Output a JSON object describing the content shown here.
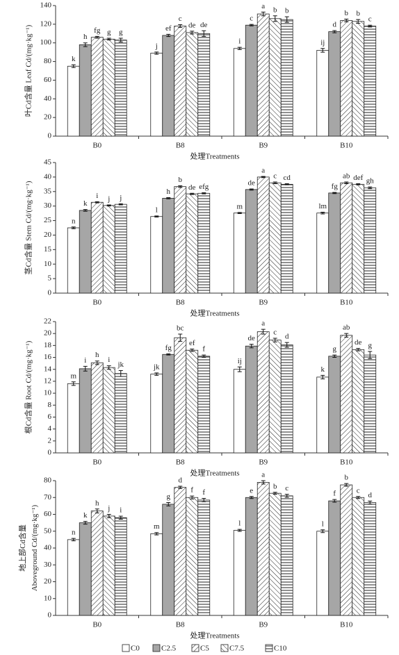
{
  "chart_data": [
    {
      "type": "bar",
      "ylabel": [
        "叶Cd含量 Leaf Cd/(mg·kg⁻¹)"
      ],
      "xlabel": "处理Treatments",
      "categories": [
        "B0",
        "B8",
        "B9",
        "B10"
      ],
      "ylim": [
        0,
        140
      ],
      "yticks": [
        0,
        20,
        40,
        60,
        80,
        100,
        120,
        140
      ],
      "series": [
        {
          "color": "#ffffff",
          "hatch": "none",
          "values": [
            75,
            89,
            94,
            92
          ],
          "errors": [
            1.5,
            1.2,
            1.2,
            2
          ],
          "letters": [
            "k",
            "j",
            "i",
            "ij"
          ]
        },
        {
          "color": "#a6a6a6",
          "hatch": "none",
          "values": [
            98,
            108,
            119,
            112
          ],
          "errors": [
            2,
            1.2,
            0.8,
            1.2
          ],
          "letters": [
            "h",
            "ef",
            "c",
            "d"
          ]
        },
        {
          "color": "#ffffff",
          "hatch": "diag",
          "values": [
            106,
            118,
            131,
            124
          ],
          "errors": [
            1,
            1.5,
            2,
            1.5
          ],
          "letters": [
            "fg",
            "c",
            "a",
            "b"
          ]
        },
        {
          "color": "#ffffff",
          "hatch": "antidiag",
          "values": [
            104,
            111,
            126,
            123
          ],
          "errors": [
            1,
            1.5,
            3,
            2
          ],
          "letters": [
            "g",
            "de",
            "b",
            "b"
          ]
        },
        {
          "color": "#ffffff",
          "hatch": "horizontal",
          "values": [
            103,
            110,
            125,
            118
          ],
          "errors": [
            2,
            3,
            3,
            1
          ],
          "letters": [
            "g",
            "de",
            "b",
            "c"
          ]
        }
      ]
    },
    {
      "type": "bar",
      "ylabel": [
        "茎Cd含量 Stem Cd/(mg·kg⁻¹)"
      ],
      "xlabel": "处理Treatments",
      "categories": [
        "B0",
        "B8",
        "B9",
        "B10"
      ],
      "ylim": [
        0,
        45
      ],
      "yticks": [
        0,
        5,
        10,
        15,
        20,
        25,
        30,
        35,
        40,
        45
      ],
      "series": [
        {
          "color": "#ffffff",
          "hatch": "none",
          "values": [
            22.5,
            26.4,
            27.6,
            27.6
          ],
          "errors": [
            0.3,
            0.2,
            0.2,
            0.3
          ],
          "letters": [
            "n",
            "l",
            "m",
            "lm"
          ]
        },
        {
          "color": "#a6a6a6",
          "hatch": "none",
          "values": [
            28.5,
            32.7,
            35.7,
            34.5
          ],
          "errors": [
            0.3,
            0.2,
            0.2,
            0.2
          ],
          "letters": [
            "k",
            "h",
            "de",
            "fg"
          ]
        },
        {
          "color": "#ffffff",
          "hatch": "diag",
          "values": [
            31.3,
            36.7,
            40.0,
            38.0
          ],
          "errors": [
            0.2,
            0.3,
            0.2,
            0.3
          ],
          "letters": [
            "i",
            "b",
            "a",
            "ab"
          ]
        },
        {
          "color": "#ffffff",
          "hatch": "antidiag",
          "values": [
            30.2,
            34.2,
            38.0,
            37.5
          ],
          "errors": [
            0.2,
            0.2,
            0.3,
            0.2
          ],
          "letters": [
            "j",
            "de",
            "c",
            "def"
          ]
        },
        {
          "color": "#ffffff",
          "hatch": "horizontal",
          "values": [
            30.6,
            34.4,
            37.5,
            36.3
          ],
          "errors": [
            0.2,
            0.2,
            0.2,
            0.3
          ],
          "letters": [
            "j",
            "efg",
            "cd",
            "gh"
          ]
        }
      ]
    },
    {
      "type": "bar",
      "ylabel": [
        "根Cd含量 Root Cd/(mg·kg⁻¹)"
      ],
      "xlabel": "处理Treatments",
      "categories": [
        "B0",
        "B8",
        "B9",
        "B10"
      ],
      "ylim": [
        0,
        22
      ],
      "yticks": [
        0,
        2,
        4,
        6,
        8,
        10,
        12,
        14,
        16,
        18,
        20,
        22
      ],
      "series": [
        {
          "color": "#ffffff",
          "hatch": "none",
          "values": [
            11.6,
            13.2,
            14.0,
            12.7
          ],
          "errors": [
            0.3,
            0.2,
            0.4,
            0.3
          ],
          "letters": [
            "m",
            "jk",
            "ij",
            "k"
          ]
        },
        {
          "color": "#a6a6a6",
          "hatch": "none",
          "values": [
            14.1,
            16.5,
            17.9,
            16.2
          ],
          "errors": [
            0.4,
            0.1,
            0.3,
            0.2
          ],
          "letters": [
            "i",
            "fg",
            "de",
            "g"
          ]
        },
        {
          "color": "#ffffff",
          "hatch": "diag",
          "values": [
            15.1,
            19.3,
            20.3,
            19.7
          ],
          "errors": [
            0.3,
            0.6,
            0.4,
            0.3
          ],
          "letters": [
            "h",
            "bc",
            "a",
            "ab"
          ]
        },
        {
          "color": "#ffffff",
          "hatch": "antidiag",
          "values": [
            14.3,
            17.2,
            18.9,
            17.3
          ],
          "errors": [
            0.3,
            0.2,
            0.3,
            0.2
          ],
          "letters": [
            "i",
            "ef",
            "c",
            "de"
          ]
        },
        {
          "color": "#ffffff",
          "hatch": "horizontal",
          "values": [
            13.3,
            16.2,
            18.1,
            16.4
          ],
          "errors": [
            0.5,
            0.2,
            0.4,
            0.6
          ],
          "letters": [
            "jk",
            "f",
            "d",
            "g"
          ]
        }
      ]
    },
    {
      "type": "bar",
      "ylabel": [
        "地上部Cd含量",
        "Aboveground Cd/(mg·kg⁻¹)"
      ],
      "xlabel": "处理Treatments",
      "categories": [
        "B0",
        "B8",
        "B9",
        "B10"
      ],
      "ylim": [
        0,
        80
      ],
      "yticks": [
        0,
        10,
        20,
        30,
        40,
        50,
        60,
        70,
        80
      ],
      "series": [
        {
          "name": "C0",
          "color": "#ffffff",
          "hatch": "none",
          "values": [
            45,
            48.5,
            50.5,
            50
          ],
          "errors": [
            0.7,
            0.7,
            0.6,
            0.8
          ],
          "letters": [
            "n",
            "m",
            "l",
            "l"
          ]
        },
        {
          "name": "C2.5",
          "color": "#a6a6a6",
          "hatch": "none",
          "values": [
            55,
            66,
            70,
            68
          ],
          "errors": [
            0.8,
            1,
            0.6,
            0.8
          ],
          "letters": [
            "k",
            "g",
            "e",
            "f"
          ]
        },
        {
          "name": "C5",
          "color": "#ffffff",
          "hatch": "diag",
          "values": [
            62,
            76,
            79,
            77.5
          ],
          "errors": [
            1.2,
            0.7,
            1,
            0.8
          ],
          "letters": [
            "h",
            "d",
            "a",
            "b"
          ]
        },
        {
          "name": "C7.5",
          "color": "#ffffff",
          "hatch": "antidiag",
          "values": [
            59,
            70,
            72.5,
            70
          ],
          "errors": [
            1,
            0.9,
            0.6,
            0.6
          ],
          "letters": [
            "j",
            "f",
            "b",
            "c"
          ]
        },
        {
          "name": "C10",
          "color": "#ffffff",
          "hatch": "horizontal",
          "values": [
            58,
            68.5,
            71,
            67
          ],
          "errors": [
            0.9,
            1,
            0.9,
            0.9
          ],
          "letters": [
            "i",
            "f",
            "c",
            "d"
          ]
        }
      ]
    }
  ]
}
